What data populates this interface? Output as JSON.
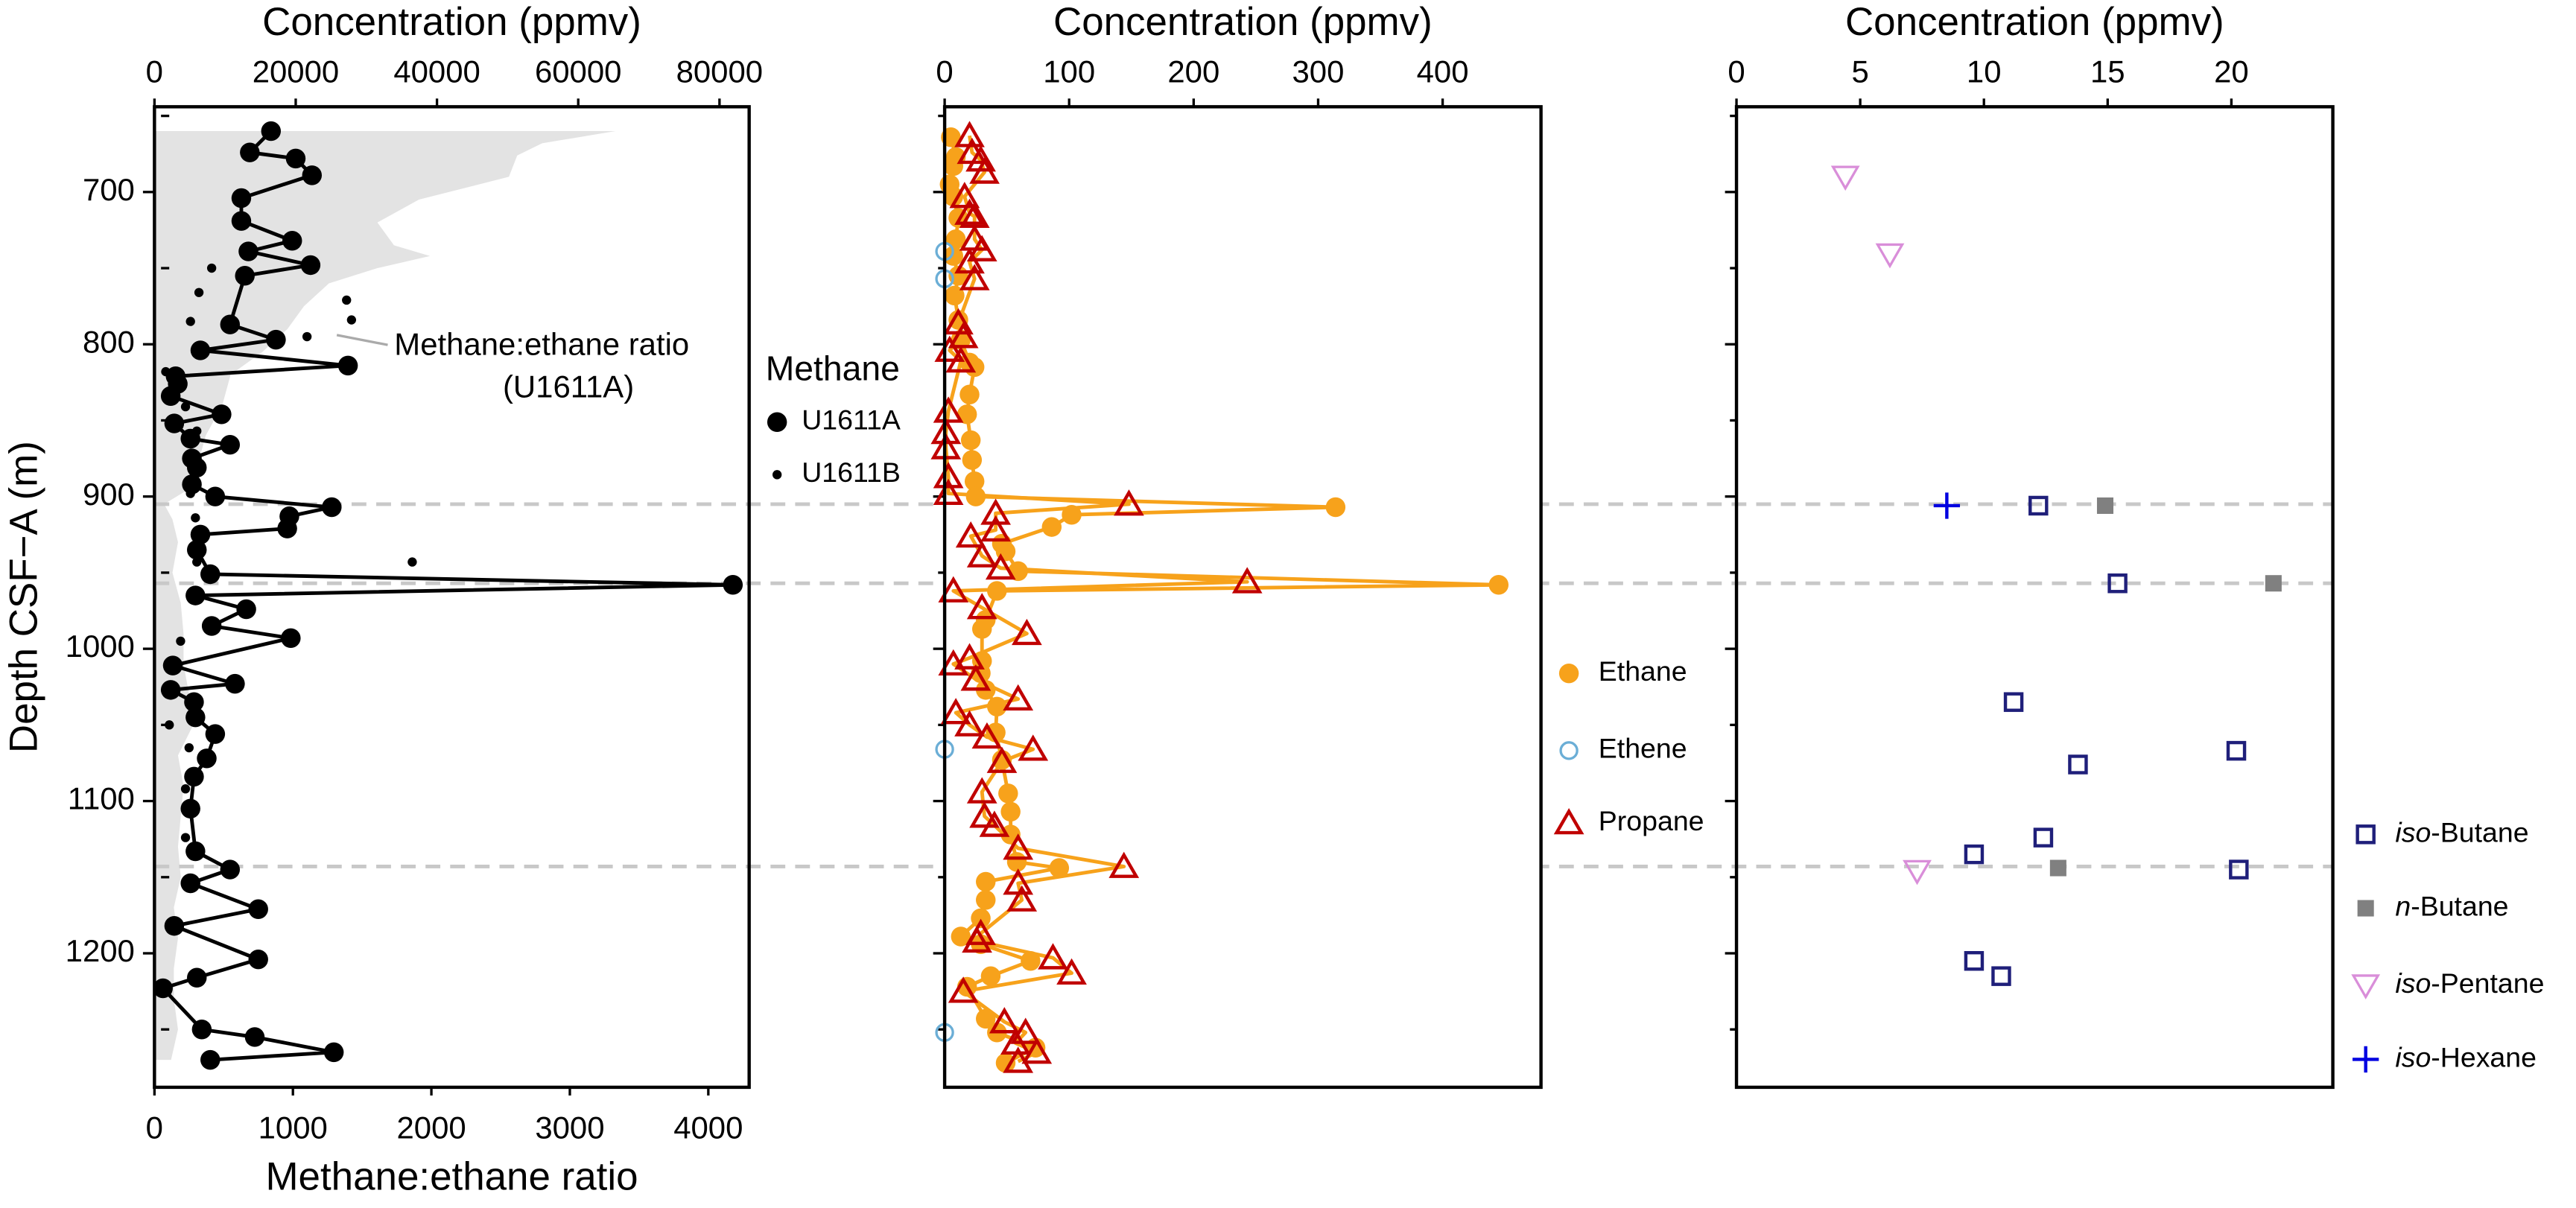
{
  "reference_depths": [
    905,
    957,
    1143
  ],
  "chart_data": [
    {
      "type": "line",
      "xlabel": "Concentration (ppmv)",
      "xlim": [
        0,
        84200
      ],
      "xticks": [
        0,
        20000,
        40000,
        60000,
        80000
      ],
      "x2label": "Methane:ethane ratio",
      "x2lim": [
        0,
        4295
      ],
      "x2ticks": [
        0,
        1000,
        2000,
        3000,
        4000
      ],
      "ylabel": "Depth CSF−A (m)",
      "ylim": [
        644,
        1288
      ],
      "y_inverted": true,
      "yticks": [
        700,
        800,
        900,
        1000,
        1100,
        1200
      ],
      "yticks_minor": [
        650,
        750,
        850,
        950,
        1050,
        1150,
        1250
      ],
      "legend_title": "Methane",
      "area": {
        "color": "#e3e3e3",
        "axis": "x2",
        "x": [
          3330,
          2800,
          2620,
          2560,
          1910,
          1610,
          1730,
          1990,
          1610,
          1260,
          1080,
          960,
          780,
          550,
          490,
          370,
          310,
          250,
          70,
          130,
          170,
          130,
          190,
          210,
          210,
          250,
          280,
          170,
          210,
          190,
          170,
          190,
          140,
          170,
          140,
          140,
          170,
          120
        ],
        "y": [
          660,
          668,
          676,
          690,
          705,
          720,
          735,
          742,
          750,
          760,
          775,
          790,
          805,
          820,
          840,
          860,
          880,
          895,
          905,
          915,
          930,
          950,
          970,
          990,
          1010,
          1030,
          1050,
          1070,
          1090,
          1110,
          1130,
          1150,
          1170,
          1190,
          1210,
          1230,
          1250,
          1270
        ]
      },
      "annotation": [
        "Methane:ethane ratio",
        "(U1611A)"
      ],
      "series": [
        {
          "name": "U1611A",
          "color": "#000000",
          "line_color": "#000000",
          "marker": "circle",
          "x": [
            16500,
            13500,
            20000,
            22300,
            12300,
            12300,
            19500,
            13300,
            22100,
            12800,
            10700,
            17200,
            6500,
            27400,
            3000,
            3300,
            2300,
            9500,
            2800,
            5100,
            10700,
            5300,
            6000,
            5300,
            8600,
            25100,
            19100,
            18800,
            6500,
            6000,
            7900,
            81900,
            5800,
            13000,
            8100,
            19300,
            2600,
            11400,
            2300,
            5600,
            5800,
            8600,
            7400,
            5600,
            5100,
            5800,
            10700,
            5100,
            14700,
            2800,
            14700,
            6000,
            1200,
            6700,
            14200,
            25400,
            7900
          ],
          "y": [
            660,
            674,
            678,
            689,
            704,
            719,
            732,
            739,
            748,
            755,
            787,
            797,
            804,
            814,
            821,
            826,
            834,
            846,
            852,
            862,
            866,
            875,
            881,
            892,
            900,
            907,
            913,
            921,
            925,
            935,
            951,
            958,
            965,
            974,
            985,
            993,
            1011,
            1023,
            1027,
            1035,
            1045,
            1056,
            1072,
            1084,
            1105,
            1133,
            1145,
            1154,
            1171,
            1182,
            1204,
            1216,
            1223,
            1250,
            1255,
            1265,
            1270
          ]
        },
        {
          "name": "U1611B",
          "color": "#000000",
          "marker": "dot",
          "x": [
            8100,
            6300,
            5100,
            27200,
            27900,
            21600,
            1600,
            4400,
            6000,
            5600,
            5100,
            5800,
            6000,
            36500,
            6000,
            3700,
            2100,
            4900,
            4400,
            4400
          ],
          "y": [
            750,
            766,
            785,
            771,
            784,
            795,
            818,
            841,
            857,
            887,
            898,
            914,
            943,
            943,
            968,
            995,
            1050,
            1065,
            1092,
            1124
          ]
        }
      ]
    },
    {
      "type": "line",
      "xlabel": "Concentration (ppmv)",
      "xlim": [
        0,
        479
      ],
      "xticks": [
        0,
        100,
        200,
        300,
        400
      ],
      "ylim": [
        644,
        1288
      ],
      "y_inverted": true,
      "yticks": [
        700,
        800,
        900,
        1000,
        1100,
        1200
      ],
      "yticks_minor": [
        650,
        750,
        850,
        950,
        1050,
        1150,
        1250
      ],
      "series": [
        {
          "name": "Ethane",
          "color": "#f7a21b",
          "line_color": "#f7a21b",
          "marker": "circle",
          "x": [
            5,
            9,
            7,
            4,
            7,
            11,
            9,
            7,
            11,
            8,
            11,
            13,
            20,
            24,
            20,
            18,
            21,
            22,
            24,
            25,
            314,
            102,
            86,
            46,
            49,
            59,
            445,
            42,
            33,
            30,
            30,
            29,
            33,
            42,
            41,
            46,
            51,
            53,
            53,
            58,
            92,
            33,
            33,
            29,
            13,
            29,
            69,
            37,
            18,
            33,
            42,
            73,
            49
          ],
          "y": [
            664,
            677,
            683,
            695,
            703,
            717,
            731,
            742,
            755,
            768,
            784,
            797,
            812,
            815,
            833,
            846,
            863,
            876,
            890,
            900,
            907,
            912,
            920,
            931,
            936,
            949,
            958,
            962,
            981,
            987,
            1008,
            1016,
            1027,
            1038,
            1055,
            1073,
            1095,
            1107,
            1122,
            1140,
            1144,
            1153,
            1165,
            1177,
            1189,
            1194,
            1205,
            1215,
            1222,
            1243,
            1252,
            1262,
            1272
          ]
        },
        {
          "name": "Ethene",
          "color": "#6baed6",
          "marker": "circle-open",
          "x": [
            0,
            0,
            0,
            0
          ],
          "y": [
            739,
            757,
            1066,
            1252
          ]
        },
        {
          "name": "Propane",
          "color": "#c00000",
          "line_color": "#f7a21b",
          "marker": "triangle-open",
          "x": [
            20,
            22,
            29,
            32,
            16,
            20,
            24,
            24,
            30,
            20,
            24,
            11,
            15,
            4,
            13,
            3,
            1,
            1,
            3,
            3,
            148,
            41,
            41,
            21,
            30,
            45,
            243,
            7,
            30,
            66,
            20,
            7,
            25,
            59,
            9,
            20,
            34,
            71,
            46,
            30,
            32,
            40,
            59,
            144,
            59,
            62,
            29,
            26,
            87,
            102,
            15,
            48,
            65,
            57,
            74,
            59
          ],
          "y": [
            663,
            674,
            679,
            687,
            703,
            714,
            716,
            731,
            738,
            746,
            757,
            786,
            795,
            804,
            811,
            844,
            858,
            868,
            887,
            898,
            905,
            911,
            922,
            926,
            939,
            947,
            956,
            962,
            973,
            990,
            1006,
            1010,
            1020,
            1033,
            1042,
            1050,
            1058,
            1066,
            1074,
            1094,
            1110,
            1116,
            1131,
            1143,
            1154,
            1165,
            1187,
            1192,
            1203,
            1213,
            1225,
            1245,
            1252,
            1259,
            1265,
            1271
          ]
        }
      ]
    },
    {
      "type": "scatter",
      "xlabel": "Concentration (ppmv)",
      "xlim": [
        0,
        24.1
      ],
      "xticks": [
        0,
        5,
        10,
        15,
        20
      ],
      "ylim": [
        644,
        1288
      ],
      "y_inverted": true,
      "yticks": [
        700,
        800,
        900,
        1000,
        1100,
        1200
      ],
      "yticks_minor": [
        650,
        750,
        850,
        950,
        1050,
        1150,
        1250
      ],
      "series": [
        {
          "name": "iso-Butane",
          "color": "#1f1f7a",
          "marker": "square-open",
          "x": [
            12.2,
            15.4,
            11.2,
            20.2,
            13.8,
            12.4,
            9.6,
            20.3,
            9.6,
            10.7
          ],
          "y": [
            906,
            957,
            1035,
            1067,
            1076,
            1124,
            1135,
            1145,
            1205,
            1215
          ]
        },
        {
          "name": "n-Butane",
          "color": "#808080",
          "marker": "square",
          "x": [
            14.9,
            21.7,
            13.0
          ],
          "y": [
            906,
            957,
            1144
          ]
        },
        {
          "name": "iso-Pentane",
          "color": "#d98ed9",
          "marker": "triangle-down-open",
          "x": [
            4.4,
            6.2,
            7.3
          ],
          "y": [
            690,
            741,
            1146
          ]
        },
        {
          "name": "iso-Hexane",
          "color": "#0000e0",
          "marker": "plus",
          "x": [
            8.5
          ],
          "y": [
            906
          ]
        }
      ]
    }
  ]
}
